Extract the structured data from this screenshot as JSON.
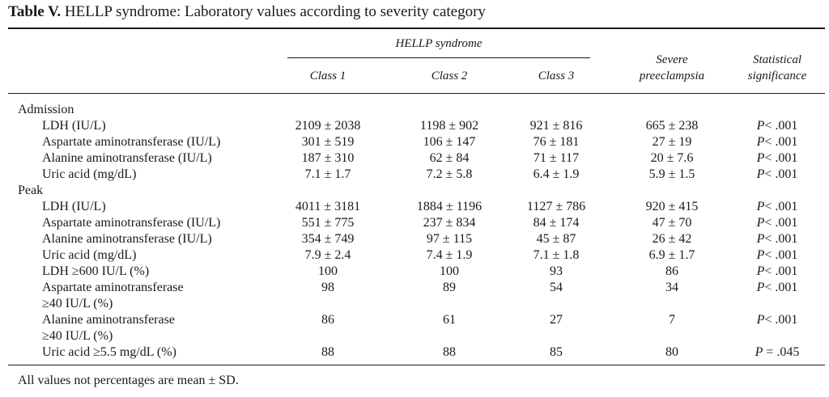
{
  "title": {
    "label": "Table V.",
    "text": "HELLP syndrome: Laboratory values according to severity category"
  },
  "headers": {
    "group": "HELLP syndrome",
    "class1": "Class 1",
    "class2": "Class 2",
    "class3": "Class 3",
    "severe_line1": "Severe",
    "severe_line2": "preeclampsia",
    "stat_line1": "Statistical",
    "stat_line2": "significance"
  },
  "sections": {
    "admission": "Admission",
    "peak": "Peak"
  },
  "rows": [
    {
      "label": [
        "LDH (IU/L)"
      ],
      "c1": "2109 ± 2038",
      "c2": "1198 ± 902",
      "c3": "921 ± 816",
      "sp": "665 ± 238",
      "p": "P",
      "pv": "< .001"
    },
    {
      "label": [
        "Aspartate aminotransferase (IU/L)"
      ],
      "c1": "301 ± 519",
      "c2": "106 ± 147",
      "c3": "76 ± 181",
      "sp": "27 ± 19",
      "p": "P",
      "pv": "< .001"
    },
    {
      "label": [
        "Alanine aminotransferase (IU/L)"
      ],
      "c1": "187 ± 310",
      "c2": "62 ± 84",
      "c3": "71 ± 117",
      "sp": "20 ± 7.6",
      "p": "P",
      "pv": "< .001"
    },
    {
      "label": [
        "Uric acid (mg/dL)"
      ],
      "c1": "7.1 ± 1.7",
      "c2": "7.2 ± 5.8",
      "c3": "6.4 ± 1.9",
      "sp": "5.9 ± 1.5",
      "p": "P",
      "pv": "< .001"
    },
    {
      "label": [
        "LDH (IU/L)"
      ],
      "c1": "4011 ± 3181",
      "c2": "1884 ± 1196",
      "c3": "1127 ± 786",
      "sp": "920 ± 415",
      "p": "P",
      "pv": "< .001"
    },
    {
      "label": [
        "Aspartate aminotransferase (IU/L)"
      ],
      "c1": "551 ± 775",
      "c2": "237 ± 834",
      "c3": "84 ± 174",
      "sp": "47 ± 70",
      "p": "P",
      "pv": "< .001"
    },
    {
      "label": [
        "Alanine aminotransferase (IU/L)"
      ],
      "c1": "354 ± 749",
      "c2": "97 ± 115",
      "c3": "45 ± 87",
      "sp": "26 ± 42",
      "p": "P",
      "pv": "< .001"
    },
    {
      "label": [
        "Uric acid (mg/dL)"
      ],
      "c1": "7.9 ± 2.4",
      "c2": "7.4 ± 1.9",
      "c3": "7.1 ± 1.8",
      "sp": "6.9 ± 1.7",
      "p": "P",
      "pv": "< .001"
    },
    {
      "label": [
        "LDH ≥600 IU/L (%)"
      ],
      "c1": "100",
      "c2": "100",
      "c3": "93",
      "sp": "86",
      "p": "P",
      "pv": "< .001"
    },
    {
      "label": [
        "Aspartate aminotransferase",
        "≥40 IU/L (%)"
      ],
      "c1": "98",
      "c2": "89",
      "c3": "54",
      "sp": "34",
      "p": "P",
      "pv": "< .001"
    },
    {
      "label": [
        "Alanine aminotransferase",
        "≥40 IU/L (%)"
      ],
      "c1": "86",
      "c2": "61",
      "c3": "27",
      "sp": "7",
      "p": "P",
      "pv": "< .001"
    },
    {
      "label": [
        "Uric acid ≥5.5 mg/dL (%)"
      ],
      "c1": "88",
      "c2": "88",
      "c3": "85",
      "sp": "80",
      "p": "P",
      "pv": " = .045"
    }
  ],
  "footnote": "All values not percentages are mean ± SD."
}
